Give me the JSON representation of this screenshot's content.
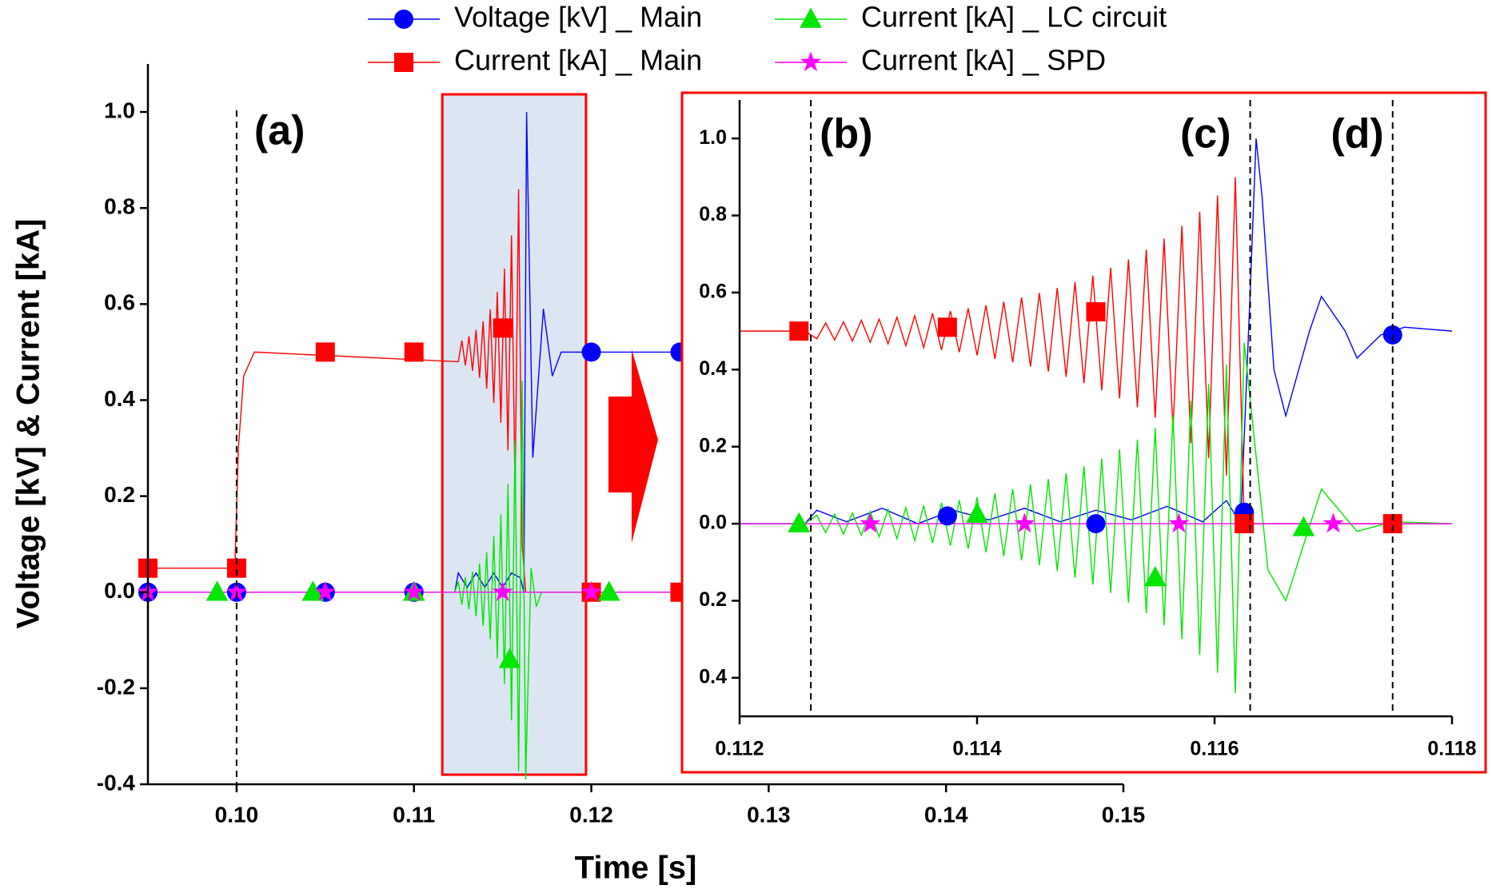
{
  "chart_data": [
    {
      "type": "line",
      "xlabel": "Time [s]",
      "ylabel": "Voltage [kV] & Current [kA]",
      "legend": "top",
      "xlim": [
        0.095,
        0.15
      ],
      "xticks": [
        {
          "value": 0.1,
          "label": "0.10"
        },
        0.11,
        0.12,
        0.13,
        0.14,
        0.15
      ],
      "ylim": [
        -0.4,
        1.1
      ],
      "yticks": [
        -0.4,
        -0.2,
        {
          "value": 0,
          "label": "0.0"
        },
        0.2,
        0.4,
        0.6,
        0.8,
        {
          "value": 1,
          "label": "1.0"
        }
      ],
      "highlight": [
        0.1116,
        0.1197
      ],
      "vlines": [
        0.1
      ],
      "annotations": [
        "(a)"
      ],
      "series": [
        {
          "name": "Voltage [kV] _ Main",
          "color": "#0000ff",
          "marker": "circle",
          "x": [
            0.095,
            0.1123,
            0.1125,
            0.113,
            0.1135,
            0.114,
            0.1145,
            0.115,
            0.1155,
            0.116,
            0.1162,
            0.11635,
            0.1167,
            0.1173,
            0.1178,
            0.1183,
            0.125
          ],
          "values": [
            0,
            0,
            0.04,
            0.01,
            0.04,
            0.01,
            0.04,
            0.01,
            0.04,
            0.03,
            0,
            1.0,
            0.28,
            0.59,
            0.45,
            0.5,
            0.5
          ],
          "marker_x": [
            0.095,
            0.1,
            0.105,
            0.11,
            0.12,
            0.125
          ],
          "marker_values": [
            0,
            0,
            0,
            0,
            0.5,
            0.5
          ]
        },
        {
          "name": "Current [kA] _ Main",
          "color": "#ff0000",
          "marker": "square",
          "x": [
            0.095,
            0.0999,
            0.1001,
            0.1004,
            0.101,
            0.1125,
            0.1127,
            0.1129,
            0.1131,
            0.1133,
            0.1135,
            0.1137,
            0.1139,
            0.1141,
            0.1143,
            0.1145,
            0.1147,
            0.1149,
            0.1151,
            0.1153,
            0.1155,
            0.1157,
            0.1159,
            0.1161,
            0.1163,
            0.125
          ],
          "values": [
            0.05,
            0.05,
            0.3,
            0.45,
            0.5,
            0.48,
            0.524,
            0.472,
            0.533,
            0.461,
            0.546,
            0.446,
            0.564,
            0.424,
            0.589,
            0.394,
            0.625,
            0.353,
            0.674,
            0.295,
            0.743,
            0.213,
            0.839,
            0.1,
            0,
            0
          ],
          "marker_x": [
            0.095,
            0.1,
            0.105,
            0.11,
            0.115,
            0.12,
            0.125
          ],
          "marker_values": [
            0.05,
            0.05,
            0.5,
            0.5,
            0.55,
            0,
            0
          ]
        },
        {
          "name": "Current [kA] _ LC circuit",
          "color": "#00e600",
          "marker": "triangle",
          "x": [
            0.095,
            0.1123,
            0.1125,
            0.1127,
            0.1129,
            0.1131,
            0.1133,
            0.1135,
            0.1137,
            0.1139,
            0.1141,
            0.1143,
            0.1145,
            0.1147,
            0.1149,
            0.1151,
            0.1153,
            0.1155,
            0.1157,
            0.1159,
            0.1161,
            0.1163,
            0.1166,
            0.1169,
            0.1172,
            0.125
          ],
          "values": [
            0,
            0,
            0.022,
            -0.026,
            0.031,
            -0.036,
            0.043,
            -0.05,
            0.06,
            -0.07,
            0.083,
            -0.098,
            0.117,
            -0.138,
            0.162,
            -0.191,
            0.226,
            -0.267,
            0.316,
            -0.373,
            0.44,
            -0.39,
            0.05,
            -0.03,
            0,
            0
          ],
          "marker_x": [
            0.0989,
            0.1043,
            0.11,
            0.1154,
            0.121
          ],
          "marker_values": [
            0,
            0,
            0,
            -0.14,
            0
          ]
        },
        {
          "name": "Current [kA] _ SPD",
          "color": "#ff00ff",
          "marker": "star",
          "x": [
            0.095,
            0.125
          ],
          "values": [
            0,
            0
          ],
          "marker_x": [
            0.095,
            0.1,
            0.105,
            0.11,
            0.115,
            0.12
          ],
          "marker_values": [
            0,
            0,
            0,
            0,
            0,
            0
          ]
        }
      ]
    },
    {
      "type": "line",
      "xlim": [
        0.112,
        0.118
      ],
      "xticks": [
        0.112,
        0.114,
        0.116,
        0.118
      ],
      "ylim": [
        -0.5,
        1.1
      ],
      "yticks": [
        {
          "value": -0.4,
          "label": "0.4"
        },
        {
          "value": -0.2,
          "label": "0.2"
        },
        {
          "value": 0,
          "label": "0.0"
        },
        0.2,
        0.4,
        0.6,
        0.8,
        {
          "value": 1,
          "label": "1.0"
        }
      ],
      "vlines": [
        0.1126,
        0.1163,
        0.1175
      ],
      "annotations": [
        "(b)",
        "(c)",
        "(d)"
      ],
      "series": [
        {
          "color": "#0000ff",
          "marker": "circle",
          "x": [
            0.112,
            0.11255,
            0.11265,
            0.1129,
            0.1132,
            0.1135,
            0.1138,
            0.1141,
            0.1144,
            0.1147,
            0.115,
            0.1153,
            0.1156,
            0.1159,
            0.1161,
            0.11622,
            0.1163,
            0.11635,
            0.1164,
            0.1165,
            0.1166,
            0.1168,
            0.1169,
            0.1171,
            0.1172,
            0.1174,
            0.1176,
            0.118
          ],
          "values": [
            0,
            0,
            0.035,
            0.005,
            0.04,
            0,
            0.035,
            0.01,
            0.04,
            0.005,
            0.035,
            0.01,
            0.045,
            0.005,
            0.06,
            0,
            0.6,
            1.0,
            0.85,
            0.4,
            0.28,
            0.5,
            0.59,
            0.5,
            0.43,
            0.49,
            0.51,
            0.5
          ],
          "marker_x": [
            0.11375,
            0.115,
            0.11625,
            0.1175
          ],
          "marker_values": [
            0.02,
            0,
            0.03,
            0.49
          ]
        },
        {
          "color": "#ff0000",
          "marker": "square",
          "x": [
            0.112,
            0.11255,
            0.11265,
            0.112725,
            0.1128,
            0.112875,
            0.11295,
            0.113025,
            0.1131,
            0.113175,
            0.11325,
            0.113325,
            0.1134,
            0.113475,
            0.11355,
            0.113625,
            0.1137,
            0.113775,
            0.11385,
            0.113925,
            0.114,
            0.114075,
            0.11415,
            0.114225,
            0.1143,
            0.114375,
            0.11445,
            0.114525,
            0.1146,
            0.114675,
            0.11475,
            0.114825,
            0.1149,
            0.114975,
            0.11505,
            0.115125,
            0.1152,
            0.115275,
            0.11535,
            0.115425,
            0.1155,
            0.115575,
            0.11565,
            0.115725,
            0.1158,
            0.115875,
            0.11595,
            0.116025,
            0.1161,
            0.116175,
            0.11625,
            0.118
          ],
          "values": [
            0.5,
            0.5,
            0.48,
            0.521,
            0.477,
            0.524,
            0.474,
            0.528,
            0.471,
            0.531,
            0.467,
            0.536,
            0.462,
            0.54,
            0.457,
            0.546,
            0.451,
            0.552,
            0.445,
            0.559,
            0.437,
            0.567,
            0.428,
            0.576,
            0.419,
            0.587,
            0.408,
            0.599,
            0.395,
            0.612,
            0.381,
            0.627,
            0.365,
            0.644,
            0.346,
            0.664,
            0.325,
            0.686,
            0.302,
            0.711,
            0.275,
            0.74,
            0.244,
            0.773,
            0.209,
            0.81,
            0.17,
            0.852,
            0.125,
            0.9,
            0,
            0
          ],
          "marker_x": [
            0.1125,
            0.11375,
            0.115,
            0.11625,
            0.1175
          ],
          "marker_values": [
            0.5,
            0.51,
            0.55,
            0,
            0
          ]
        },
        {
          "color": "#00e600",
          "marker": "triangle",
          "x": [
            0.112,
            0.11255,
            0.11265,
            0.112725,
            0.1128,
            0.112875,
            0.11295,
            0.113025,
            0.1131,
            0.113175,
            0.11325,
            0.113325,
            0.1134,
            0.113475,
            0.11355,
            0.113625,
            0.1137,
            0.113775,
            0.11385,
            0.113925,
            0.114,
            0.114075,
            0.11415,
            0.114225,
            0.1143,
            0.114375,
            0.11445,
            0.114525,
            0.1146,
            0.114675,
            0.11475,
            0.114825,
            0.1149,
            0.114975,
            0.11505,
            0.115125,
            0.1152,
            0.115275,
            0.11535,
            0.115425,
            0.1155,
            0.115575,
            0.11565,
            0.115725,
            0.1158,
            0.115875,
            0.11595,
            0.116025,
            0.1161,
            0.116175,
            0.11625,
            0.11645,
            0.1166,
            0.1169,
            0.1172,
            0.1175,
            0.118
          ],
          "values": [
            0,
            0,
            0.022,
            -0.023,
            0.025,
            -0.027,
            0.028,
            -0.03,
            0.032,
            -0.034,
            0.037,
            -0.039,
            0.042,
            -0.044,
            0.047,
            -0.05,
            0.054,
            -0.057,
            0.061,
            -0.065,
            0.069,
            -0.074,
            0.079,
            -0.084,
            0.09,
            -0.095,
            0.102,
            -0.108,
            0.116,
            -0.123,
            0.131,
            -0.14,
            0.149,
            -0.158,
            0.169,
            -0.18,
            0.193,
            -0.205,
            0.218,
            -0.232,
            0.248,
            -0.264,
            0.282,
            -0.3,
            0.32,
            -0.341,
            0.363,
            -0.387,
            0.413,
            -0.44,
            0.47,
            -0.12,
            -0.2,
            0.09,
            -0.02,
            0.005,
            0
          ],
          "marker_x": [
            0.1125,
            0.114,
            0.1155,
            0.11675
          ],
          "marker_values": [
            0,
            0.025,
            -0.14,
            -0.01
          ]
        },
        {
          "color": "#ff00ff",
          "marker": "star",
          "x": [
            0.112,
            0.118
          ],
          "values": [
            0,
            0
          ],
          "marker_x": [
            0.1131,
            0.1144,
            0.1157,
            0.117
          ],
          "marker_values": [
            0,
            0,
            0,
            0
          ]
        }
      ]
    }
  ]
}
